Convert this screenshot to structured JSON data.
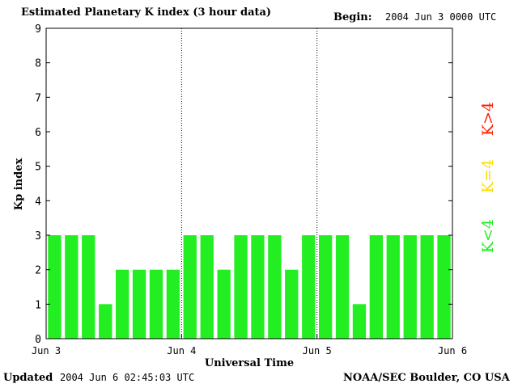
{
  "header": {
    "title": "Estimated Planetary K index (3 hour data)",
    "begin_label": "Begin:",
    "begin_value": "2004 Jun 3 0000 UTC"
  },
  "footer": {
    "updated_label": "Updated",
    "updated_value": "2004 Jun  6 02:45:03 UTC",
    "credit": "NOAA/SEC Boulder, CO USA"
  },
  "legend": [
    {
      "label": "K>4",
      "color": "#ff2200"
    },
    {
      "label": "K=4",
      "color": "#ffdd00"
    },
    {
      "label": "K<4",
      "color": "#22ee22"
    }
  ],
  "chart_data": {
    "type": "bar",
    "ylabel": "Kp index",
    "xlabel": "Universal Time",
    "ylim": [
      0,
      9
    ],
    "yticks": [
      0,
      1,
      2,
      3,
      4,
      5,
      6,
      7,
      8,
      9
    ],
    "x_tick_labels": [
      "Jun 3",
      "Jun 4",
      "Jun 5",
      "Jun 6"
    ],
    "bars_per_day": 8,
    "bar_color": "#22ee22",
    "values": [
      3,
      3,
      3,
      1,
      2,
      2,
      2,
      2,
      3,
      3,
      2,
      3,
      3,
      3,
      2,
      3,
      3,
      3,
      1,
      3,
      3,
      3,
      3,
      3
    ],
    "day_separators": true
  }
}
